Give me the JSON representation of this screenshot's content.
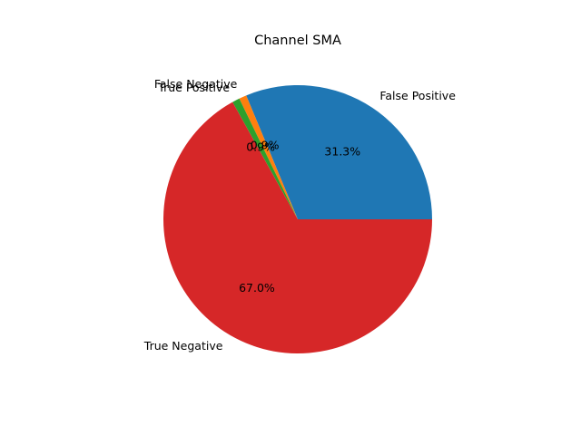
{
  "chart_data": {
    "type": "pie",
    "title": "Channel SMA",
    "categories": [
      "False Positive",
      "False Negative",
      "True Positive",
      "True Negative"
    ],
    "values": [
      31.3,
      0.9,
      0.9,
      67.0
    ],
    "percent_labels": [
      "31.3%",
      "0.9%",
      "0.9%",
      "67.0%"
    ],
    "colors": [
      "#1f77b4",
      "#ff7f0e",
      "#2ca02c",
      "#d62728"
    ],
    "start_angle_deg": 0,
    "direction": "counterclockwise",
    "legend": "none"
  }
}
